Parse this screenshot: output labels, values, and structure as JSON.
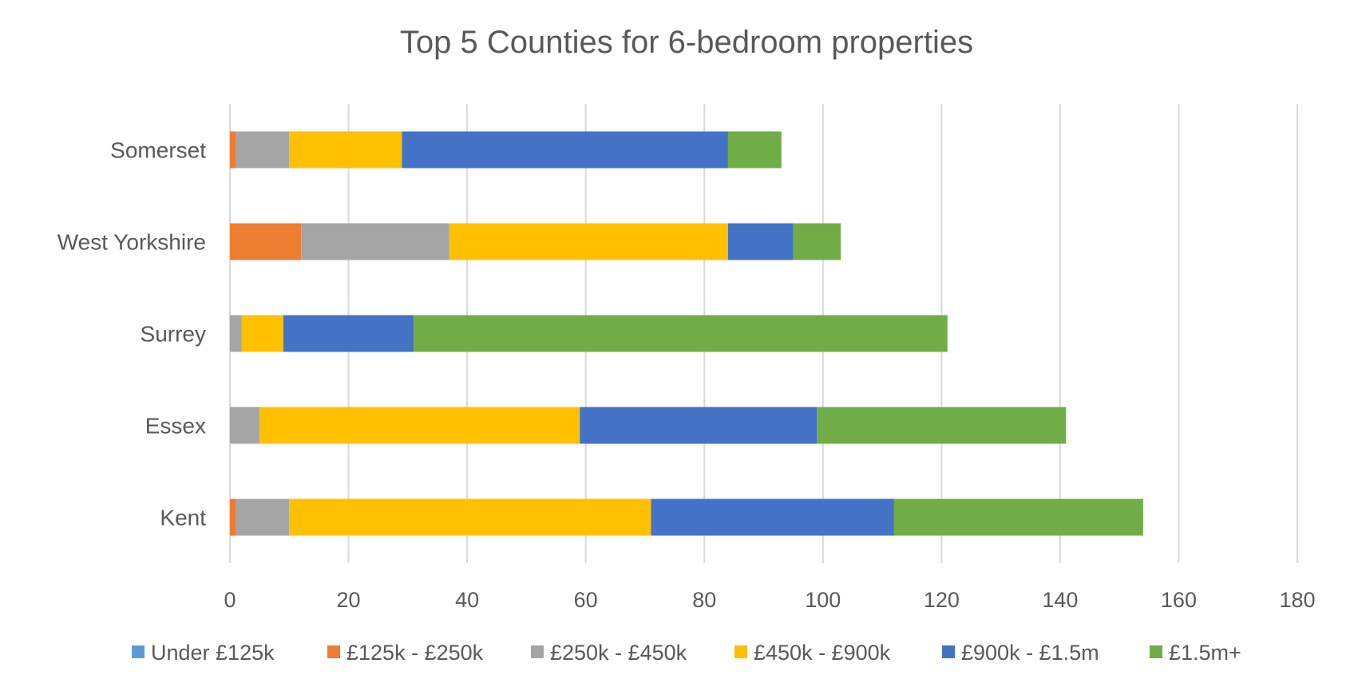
{
  "chart_data": {
    "type": "bar",
    "orientation": "horizontal",
    "stacked": true,
    "title": "Top 5 Counties for 6-bedroom properties",
    "xlabel": "",
    "ylabel": "",
    "xlim": [
      0,
      180
    ],
    "x_ticks": [
      "0",
      "20",
      "40",
      "60",
      "80",
      "100",
      "120",
      "140",
      "160",
      "180"
    ],
    "grid": true,
    "legend_position": "bottom",
    "categories": [
      "Somerset",
      "West Yorkshire",
      "Surrey",
      "Essex",
      "Kent"
    ],
    "series": [
      {
        "name": "Under £125k",
        "color": "#5B9BD5",
        "values": [
          0,
          0,
          0,
          0,
          0
        ]
      },
      {
        "name": "£125k - £250k",
        "color": "#ED7D31",
        "values": [
          1,
          12,
          0,
          0,
          1
        ]
      },
      {
        "name": "£250k - £450k",
        "color": "#A5A5A5",
        "values": [
          9,
          25,
          2,
          5,
          9
        ]
      },
      {
        "name": "£450k - £900k",
        "color": "#FFC000",
        "values": [
          19,
          47,
          7,
          54,
          61
        ]
      },
      {
        "name": "£900k - £1.5m",
        "color": "#4472C4",
        "values": [
          55,
          11,
          22,
          40,
          41
        ]
      },
      {
        "name": "£1.5m+",
        "color": "#70AD47",
        "values": [
          9,
          8,
          90,
          42,
          42
        ]
      }
    ]
  }
}
